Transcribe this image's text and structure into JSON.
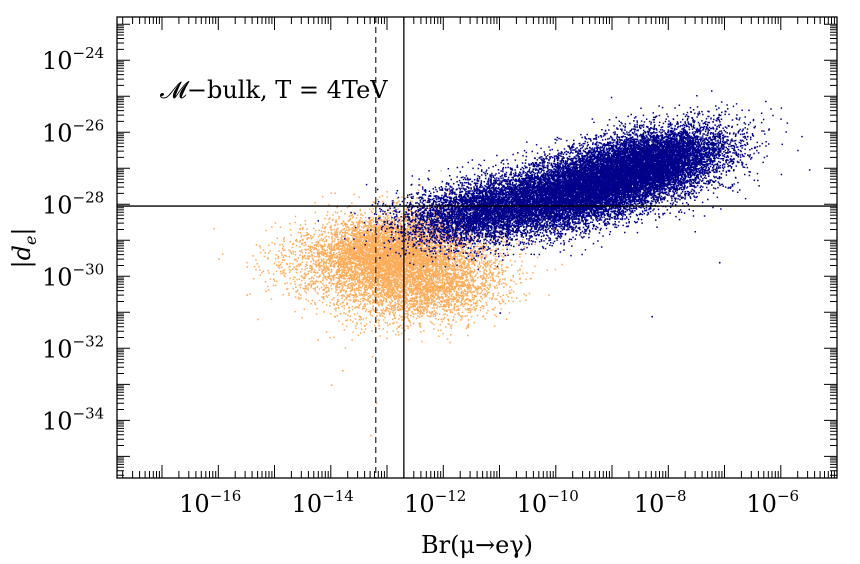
{
  "chart_data": {
    "type": "scatter",
    "title": "",
    "xlabel": "Br(μ→eγ)",
    "ylabel": "|d_e|",
    "ylabel_parts": {
      "base": "d",
      "sub": "e"
    },
    "x_scale": "log10",
    "y_scale": "log10",
    "xlim_log10": [
      -17.8,
      -5.0
    ],
    "ylim_log10": [
      -35.6,
      -22.8
    ],
    "x_ticks": [
      {
        "exp": -16,
        "base": "10",
        "power": "−16"
      },
      {
        "exp": -14,
        "base": "10",
        "power": "−14"
      },
      {
        "exp": -12,
        "base": "10",
        "power": "−12"
      },
      {
        "exp": -10,
        "base": "10",
        "power": "−10"
      },
      {
        "exp": -8,
        "base": "10",
        "power": "−8"
      },
      {
        "exp": -6,
        "base": "10",
        "power": "−6"
      }
    ],
    "y_ticks": [
      {
        "exp": -24,
        "base": "10",
        "power": "−24"
      },
      {
        "exp": -26,
        "base": "10",
        "power": "−26"
      },
      {
        "exp": -28,
        "base": "10",
        "power": "−28"
      },
      {
        "exp": -30,
        "base": "10",
        "power": "−30"
      },
      {
        "exp": -32,
        "base": "10",
        "power": "−32"
      },
      {
        "exp": -34,
        "base": "10",
        "power": "−34"
      }
    ],
    "annotation": "𝓜−bulk, T = 4TeV",
    "reference_lines": [
      {
        "orientation": "vertical",
        "log10_value": -12.7,
        "style": "solid"
      },
      {
        "orientation": "vertical",
        "log10_value": -13.2,
        "style": "dashed"
      },
      {
        "orientation": "horizontal",
        "log10_value": -28.05,
        "style": "solid"
      }
    ],
    "series": [
      {
        "name": "orange",
        "color": "#ffac58",
        "points": 9000,
        "clusters": [
          {
            "weight": 0.7,
            "center_log10": [
              -13.0,
              -29.3
            ],
            "sigma_log10": [
              0.8,
              0.55
            ],
            "corr": 0.25
          },
          {
            "weight": 0.3,
            "center_log10": [
              -12.3,
              -30.3
            ],
            "sigma_log10": [
              0.7,
              0.5
            ],
            "corr": 0.2
          }
        ],
        "outliers": [
          [
            -14.0,
            -33.0
          ],
          [
            -13.2,
            -33.5
          ],
          [
            -13.8,
            -32.6
          ],
          [
            -15.5,
            -30.5
          ],
          [
            -16.0,
            -29.5
          ],
          [
            -13.3,
            -34.4
          ]
        ]
      },
      {
        "name": "blue",
        "color": "#00008b",
        "points": 22000,
        "clusters": [
          {
            "weight": 0.55,
            "center_log10": [
              -9.6,
              -27.6
            ],
            "sigma_log10": [
              1.0,
              0.6
            ],
            "corr": 0.55
          },
          {
            "weight": 0.3,
            "center_log10": [
              -8.3,
              -26.8
            ],
            "sigma_log10": [
              0.7,
              0.5
            ],
            "corr": 0.4
          },
          {
            "weight": 0.15,
            "center_log10": [
              -11.5,
              -28.2
            ],
            "sigma_log10": [
              0.7,
              0.45
            ],
            "corr": 0.3
          }
        ],
        "outliers": [
          [
            -6.6,
            -26.1
          ],
          [
            -7.1,
            -29.6
          ],
          [
            -8.3,
            -31.1
          ],
          [
            -11.0,
            -31.0
          ],
          [
            -7.0,
            -25.4
          ],
          [
            -6.9,
            -27.5
          ]
        ]
      }
    ],
    "grid": false,
    "legend": "none"
  }
}
